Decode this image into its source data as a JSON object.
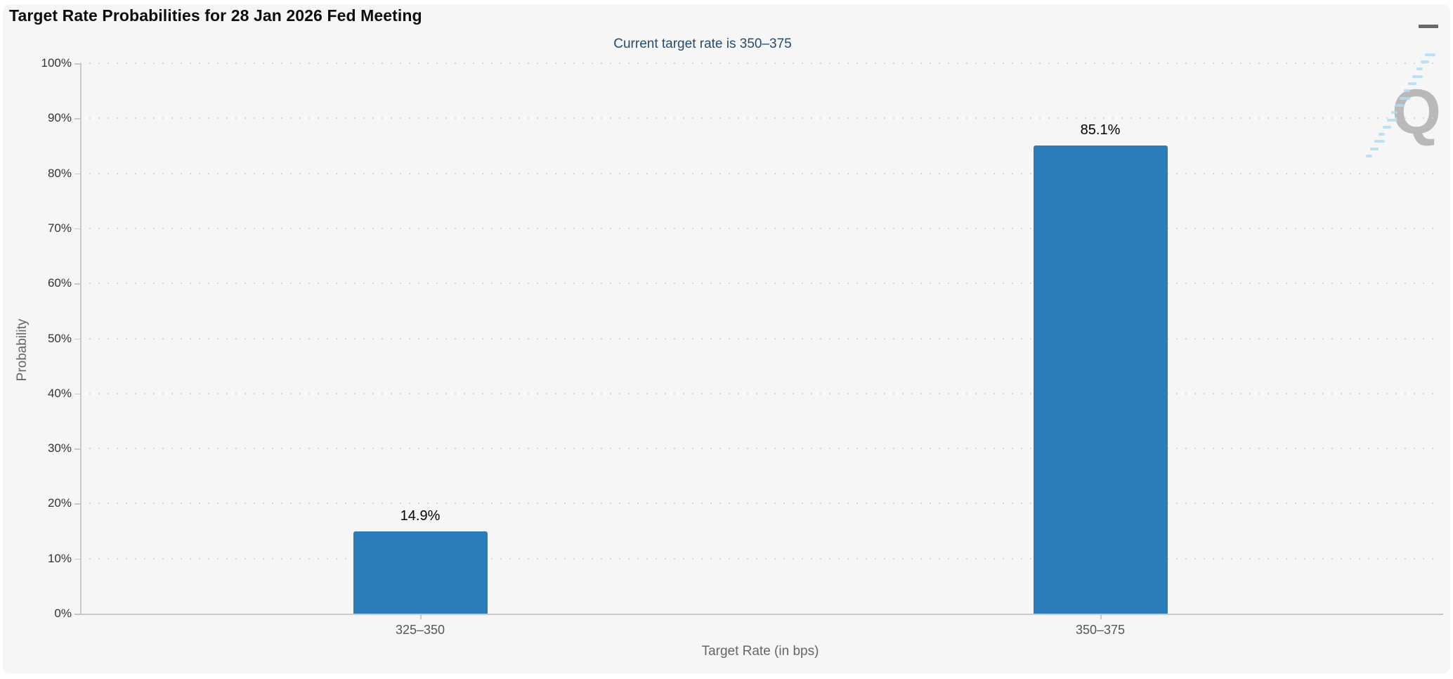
{
  "colors": {
    "page_bg": "#ffffff",
    "panel_bg": "#f6f6f6",
    "bar": "#2a7db9",
    "grid_dot": "#d5d5d5",
    "axis_line": "#c9c9c9",
    "title_text": "#0d0d0d",
    "subtitle_text": "#274b6d",
    "y_label_text": "#333333",
    "x_label_text": "#555555",
    "axis_title_text": "#666666",
    "menu_icon": "#696969",
    "watermark_q": "#b9b9b9",
    "watermark_dash": "#aedcf5"
  },
  "header": {
    "title": "Target Rate Probabilities for 28 Jan 2026 Fed Meeting",
    "menu_icon": "hamburger-menu-icon"
  },
  "watermark": {
    "letter": "Q",
    "icon": "quikstrike-logo-watermark"
  },
  "chart_data": {
    "type": "bar",
    "title": "Target Rate Probabilities for 28 Jan 2026 Fed Meeting",
    "subtitle": "Current target rate is 350–375",
    "categories": [
      "325–350",
      "350–375"
    ],
    "values": [
      14.9,
      85.1
    ],
    "value_labels": [
      "14.9%",
      "85.1%"
    ],
    "xlabel": "Target Rate (in bps)",
    "ylabel": "Probability",
    "ylim": [
      0,
      100
    ],
    "y_tick_step": 10,
    "y_tick_labels": [
      "0%",
      "10%",
      "20%",
      "30%",
      "40%",
      "50%",
      "60%",
      "70%",
      "80%",
      "90%",
      "100%"
    ],
    "grid": "dotted-horizontal",
    "legend": "none"
  }
}
